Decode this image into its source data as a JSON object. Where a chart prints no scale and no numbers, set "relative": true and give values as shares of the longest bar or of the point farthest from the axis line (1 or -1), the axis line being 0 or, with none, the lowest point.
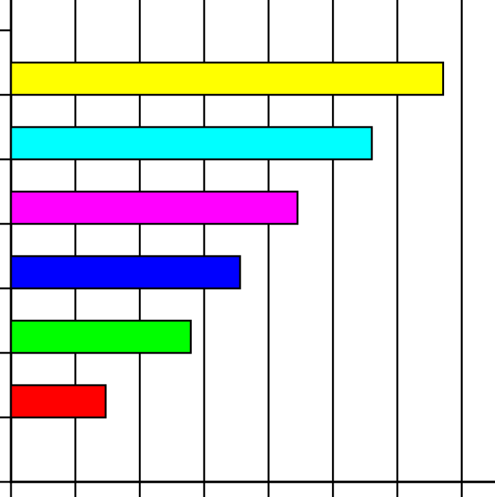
{
  "chart_data": {
    "type": "bar",
    "orientation": "horizontal",
    "relative": true,
    "grid": "x",
    "legend": false,
    "categories": [
      null,
      null,
      null,
      null,
      null,
      null
    ],
    "values": [
      1,
      0.835,
      0.663,
      0.53,
      0.416,
      0.219
    ],
    "colors": [
      "#ffff00",
      "#00ffff",
      "#ff00ff",
      "#0000ff",
      "#00ff00",
      "#ff0000"
    ]
  }
}
